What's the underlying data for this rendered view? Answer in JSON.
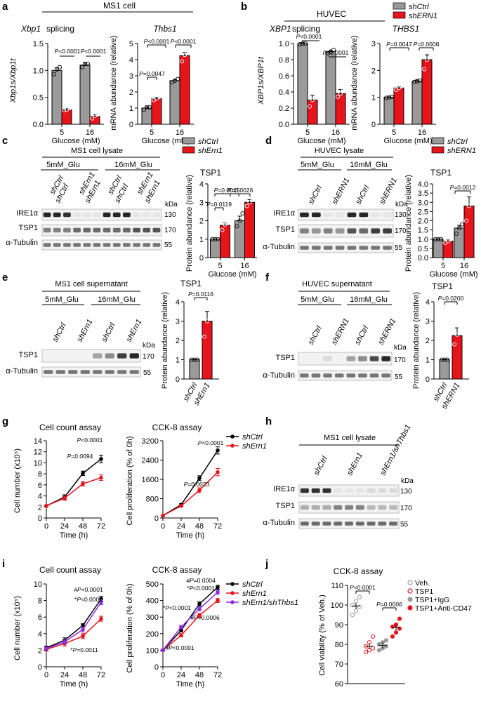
{
  "colors": {
    "ctrl": "#9a9a9a",
    "kd": "#e8141b",
    "rescue": "#8a2be2",
    "black": "#000000",
    "gray": "#9a9a9a"
  },
  "legend": {
    "ctrl": "shCtrl",
    "kd_mouse": "shErn1",
    "kd_human": "shERN1",
    "rescue": "shErn1/shThbs1"
  },
  "common": {
    "glucose_label": "Glucose (mM)",
    "mrna_ylabel": "mRNA abundance (relative)",
    "prot_ylabel": "Protein abundance (relative)",
    "kda": "kDa",
    "time_label": "Time (h)"
  },
  "panels": {
    "a": {
      "letter": "a",
      "header": "MS1 cell",
      "t1": "Xbp1",
      "t1b": " splicing",
      "t2": "Thbs1",
      "ylabel": "Xbp1s/Xbp1t"
    },
    "b": {
      "letter": "b",
      "header": "HUVEC",
      "t1": "XBP1",
      "t1b": " splicing",
      "t2": "THBS1",
      "ylabel": "XBP1s/XBP1t"
    },
    "c": {
      "letter": "c",
      "lysate": "MS1 cell lysate",
      "g1": "5mM_Glu",
      "g2": "16mM_Glu",
      "title": "TSP1"
    },
    "d": {
      "letter": "d",
      "lysate": "HUVEC  lysate",
      "g1": "5mM_Glu",
      "g2": "16mM_Glu",
      "title": "TSP1"
    },
    "e": {
      "letter": "e",
      "lysate": "MS1 cell supernatant",
      "g1": "5mM_Glu",
      "g2": "16mM_Glu",
      "title": "TSP1"
    },
    "f": {
      "letter": "f",
      "lysate": "HUVEC supernatant",
      "g1": "5mM_Glu",
      "g2": "16mM_Glu",
      "title": "TSP1"
    },
    "g": {
      "letter": "g",
      "t1": "Cell count assay",
      "t2": "CCK-8 assay",
      "y1": "Cell number (x10⁵)",
      "y2": "Cell proliferation (% of 0h)"
    },
    "h": {
      "letter": "h",
      "lysate": "MS1 cell lysate"
    },
    "i": {
      "letter": "i",
      "t1": "Cell count assay",
      "t2": "CCK-8 assay",
      "y1": "Cell number (x10⁵)",
      "y2": "Cell proliferation (% of 0h)"
    },
    "j": {
      "letter": "j",
      "title": "CCK-8 assay",
      "ylabel": "Cell viability (% of Veh.)"
    }
  },
  "blot_labels": {
    "ire1a": "IRE1α",
    "tsp1": "TSP1",
    "tub": "α-Tubulin",
    "kda130": "130",
    "kda170": "170",
    "kda55": "55"
  },
  "chart_data": [
    {
      "id": "a1",
      "type": "bar",
      "categories": [
        "5",
        "16"
      ],
      "series": [
        {
          "name": "shCtrl",
          "values": [
            1.0,
            1.1
          ],
          "err": [
            0.05,
            0.04
          ],
          "points": [
            [
              0.93,
              1.02,
              1.06
            ],
            [
              1.06,
              1.12,
              1.12
            ]
          ]
        },
        {
          "name": "shErn1",
          "values": [
            0.27,
            0.15
          ],
          "err": [
            0.02,
            0.03
          ],
          "points": [
            [
              0.26,
              0.27,
              0.3
            ],
            [
              0.11,
              0.16,
              0.18
            ]
          ]
        }
      ],
      "ylim": [
        0,
        1.5
      ],
      "yticks": [
        "0.0",
        "0.5",
        "1.0",
        "1.5"
      ],
      "pvalues": [
        "P<0.0001",
        "P<0.0001"
      ]
    },
    {
      "id": "a2",
      "type": "bar",
      "categories": [
        "5",
        "16"
      ],
      "series": [
        {
          "name": "shCtrl",
          "values": [
            1.0,
            2.7
          ],
          "err": [
            0.08,
            0.08
          ],
          "points": [
            [
              0.9,
              1.05,
              1.05
            ],
            [
              2.6,
              2.7,
              2.8
            ]
          ]
        },
        {
          "name": "shErn1",
          "values": [
            1.6,
            4.25
          ],
          "err": [
            0.08,
            0.2
          ],
          "points": [
            [
              1.5,
              1.6,
              1.7
            ],
            [
              3.9,
              4.3,
              4.45
            ]
          ]
        }
      ],
      "ylim": [
        0,
        5
      ],
      "yticks": [
        "0",
        "1",
        "2",
        "3",
        "4",
        "5"
      ],
      "pvalues": [
        "P<0.0001",
        "P<0.0001",
        "P=0.0047"
      ]
    },
    {
      "id": "b1",
      "type": "bar",
      "categories": [
        "5",
        "16"
      ],
      "series": [
        {
          "name": "shCtrl",
          "values": [
            1.0,
            0.9
          ],
          "err": [
            0.01,
            0.01
          ],
          "points": [
            [
              0.99,
              1.0,
              1.0
            ],
            [
              0.88,
              0.9,
              0.92
            ]
          ]
        },
        {
          "name": "shERN1",
          "values": [
            0.3,
            0.38
          ],
          "err": [
            0.06,
            0.05
          ],
          "points": [
            [
              0.22,
              0.3,
              0.4
            ],
            [
              0.34,
              0.38,
              0.44
            ]
          ]
        }
      ],
      "ylim": [
        0,
        1.0
      ],
      "yticks": [
        "0.0",
        "0.2",
        "0.4",
        "0.6",
        "0.8",
        "1.0"
      ],
      "pvalues": [
        "P<0.0001",
        "P<0.0001"
      ]
    },
    {
      "id": "b2",
      "type": "bar",
      "categories": [
        "5",
        "16"
      ],
      "series": [
        {
          "name": "shCtrl",
          "values": [
            1.0,
            1.6
          ],
          "err": [
            0.02,
            0.04
          ],
          "points": [
            [
              0.98,
              1.0,
              1.02
            ],
            [
              1.57,
              1.6,
              1.63
            ]
          ]
        },
        {
          "name": "shERN1",
          "values": [
            1.35,
            2.4
          ],
          "err": [
            0.05,
            0.18
          ],
          "points": [
            [
              1.28,
              1.35,
              1.42
            ],
            [
              2.05,
              2.4,
              2.7
            ]
          ]
        }
      ],
      "ylim": [
        0,
        3
      ],
      "yticks": [
        "0",
        "1",
        "2",
        "3"
      ],
      "pvalues": [
        "P=0.0047",
        "P=0.0008"
      ]
    },
    {
      "id": "c",
      "type": "bar",
      "categories": [
        "5",
        "16"
      ],
      "series": [
        {
          "name": "shCtrl",
          "values": [
            1.0,
            2.0
          ],
          "err": [
            0.02,
            0.25
          ],
          "points": [
            [
              1.0,
              1.0,
              1.0
            ],
            [
              1.7,
              2.0,
              2.4
            ]
          ]
        },
        {
          "name": "shErn1",
          "values": [
            1.75,
            3.0
          ],
          "err": [
            0.15,
            0.15
          ],
          "points": [
            [
              1.5,
              1.8,
              2.0
            ],
            [
              2.8,
              3.0,
              3.2
            ]
          ]
        }
      ],
      "ylim": [
        0,
        4
      ],
      "yticks": [
        "0",
        "1",
        "2",
        "3",
        "4"
      ],
      "pvalues": [
        "P=0.0119",
        "P=0.0015",
        "P=0.0026"
      ]
    },
    {
      "id": "d",
      "type": "bar",
      "categories": [
        "5",
        "16"
      ],
      "series": [
        {
          "name": "shCtrl",
          "values": [
            1.0,
            1.6
          ],
          "err": [
            0.02,
            0.15
          ],
          "points": [
            [
              1.0,
              1.0,
              1.0
            ],
            [
              1.3,
              1.6,
              1.8
            ]
          ]
        },
        {
          "name": "shERN1",
          "values": [
            0.9,
            2.8
          ],
          "err": [
            0.08,
            0.5
          ],
          "points": [
            [
              0.8,
              0.9,
              1.0
            ],
            [
              2.0,
              2.8,
              3.6
            ]
          ]
        }
      ],
      "ylim": [
        0,
        4
      ],
      "yticks": [
        "0.0",
        "0.5",
        "1.0",
        "1.5",
        "2.0",
        "2.5",
        "3.0",
        "3.5",
        "4.0"
      ],
      "pvalues": [
        "P=0.0012"
      ]
    },
    {
      "id": "e",
      "type": "bar",
      "categories": [
        "shCtrl",
        "shErn1"
      ],
      "values": [
        1.0,
        3.0
      ],
      "err": [
        0.02,
        0.5
      ],
      "points": [
        [
          1.0,
          1.0,
          1.0
        ],
        [
          2.2,
          3.0,
          3.8
        ]
      ],
      "ylim": [
        0,
        4
      ],
      "yticks": [
        "0",
        "1",
        "2",
        "3",
        "4"
      ],
      "pvalues": [
        "P=0.0116"
      ]
    },
    {
      "id": "f",
      "type": "bar",
      "categories": [
        "shCtrl",
        "shERN1"
      ],
      "values": [
        1.0,
        2.25
      ],
      "err": [
        0.02,
        0.4
      ],
      "points": [
        [
          1.0,
          1.0,
          1.0
        ],
        [
          1.8,
          2.3,
          2.7
        ]
      ],
      "ylim": [
        0,
        4
      ],
      "yticks": [
        "0",
        "1",
        "2",
        "3",
        "4"
      ],
      "pvalues": [
        "P=0.0200"
      ]
    },
    {
      "id": "g1",
      "type": "line",
      "x": [
        0,
        24,
        48,
        72
      ],
      "series": [
        {
          "name": "shCtrl",
          "values": [
            2.2,
            3.8,
            8.1,
            10.7
          ],
          "err": [
            0.1,
            0.4,
            0.4,
            0.7
          ]
        },
        {
          "name": "shErn1",
          "values": [
            2.2,
            3.6,
            6.2,
            7.3
          ],
          "err": [
            0.1,
            0.4,
            0.4,
            0.5
          ]
        }
      ],
      "ylim": [
        0,
        14
      ],
      "yticks": [
        "0",
        "2",
        "4",
        "6",
        "8",
        "10",
        "12",
        "14"
      ],
      "pvalues": [
        "P=0.0094",
        "P<0.0001"
      ]
    },
    {
      "id": "g2",
      "type": "line",
      "x": [
        0,
        24,
        48,
        72
      ],
      "series": [
        {
          "name": "shCtrl",
          "values": [
            100,
            550,
            1650,
            2800
          ],
          "err": [
            10,
            50,
            100,
            150
          ]
        },
        {
          "name": "shErn1",
          "values": [
            100,
            500,
            1150,
            1900
          ],
          "err": [
            10,
            50,
            100,
            150
          ]
        }
      ],
      "ylim": [
        0,
        3200
      ],
      "yticks": [
        "0",
        "800",
        "1600",
        "2400",
        "3200"
      ],
      "pvalues": [
        "P=0.0023",
        "P<0.0001"
      ]
    },
    {
      "id": "i1",
      "type": "line",
      "x": [
        0,
        24,
        48,
        72
      ],
      "series": [
        {
          "name": "shCtrl",
          "values": [
            2.3,
            3.2,
            5.0,
            8.2
          ],
          "err": [
            0.2,
            0.3,
            0.2,
            0.3
          ]
        },
        {
          "name": "shErn1",
          "values": [
            2.1,
            2.8,
            3.7,
            5.8
          ],
          "err": [
            0.2,
            0.3,
            0.3,
            0.3
          ]
        },
        {
          "name": "shErn1/shThbs1",
          "values": [
            2.2,
            3.0,
            4.5,
            7.8
          ],
          "err": [
            0.2,
            0.3,
            0.3,
            0.3
          ]
        }
      ],
      "ylim": [
        0,
        10
      ],
      "yticks": [
        "0",
        "2",
        "4",
        "6",
        "8",
        "10"
      ],
      "pvalues": [
        "#P<0.0001",
        "*P<0.0001",
        "*P=0.0011"
      ]
    },
    {
      "id": "i2",
      "type": "line",
      "x": [
        0,
        24,
        48,
        72
      ],
      "series": [
        {
          "name": "shCtrl",
          "values": [
            100,
            220,
            380,
            480
          ],
          "err": [
            5,
            10,
            12,
            12
          ]
        },
        {
          "name": "shErn1",
          "values": [
            100,
            190,
            310,
            400
          ],
          "err": [
            5,
            10,
            12,
            12
          ]
        },
        {
          "name": "shErn1/shThbs1",
          "values": [
            100,
            240,
            350,
            450
          ],
          "err": [
            5,
            10,
            12,
            12
          ]
        }
      ],
      "ylim": [
        0,
        500
      ],
      "yticks": [
        "0",
        "100",
        "200",
        "300",
        "400",
        "500"
      ],
      "pvalues": [
        "#P=0.0004",
        "*P<0.0001",
        "*P<0.0001",
        "#P=0.0006",
        "#P<0.0001"
      ]
    },
    {
      "id": "j",
      "type": "scatter",
      "categories": [
        "Veh.",
        "TSP1",
        "TSP1+IgG",
        "TSP1+Anti-CD47"
      ],
      "means": [
        99.5,
        79,
        79.5,
        88.5
      ],
      "points": [
        [
          95,
          97,
          99,
          100,
          102,
          104
        ],
        [
          76,
          77,
          78,
          79,
          81,
          84
        ],
        [
          77,
          78,
          79,
          80,
          81,
          82
        ],
        [
          84,
          86,
          88,
          89,
          90,
          93
        ]
      ],
      "ylim": [
        60,
        110
      ],
      "yticks": [
        "60",
        "70",
        "80",
        "90",
        "100",
        "110"
      ],
      "pvalues": [
        "P<0.0001",
        "P=0.0006"
      ]
    }
  ]
}
